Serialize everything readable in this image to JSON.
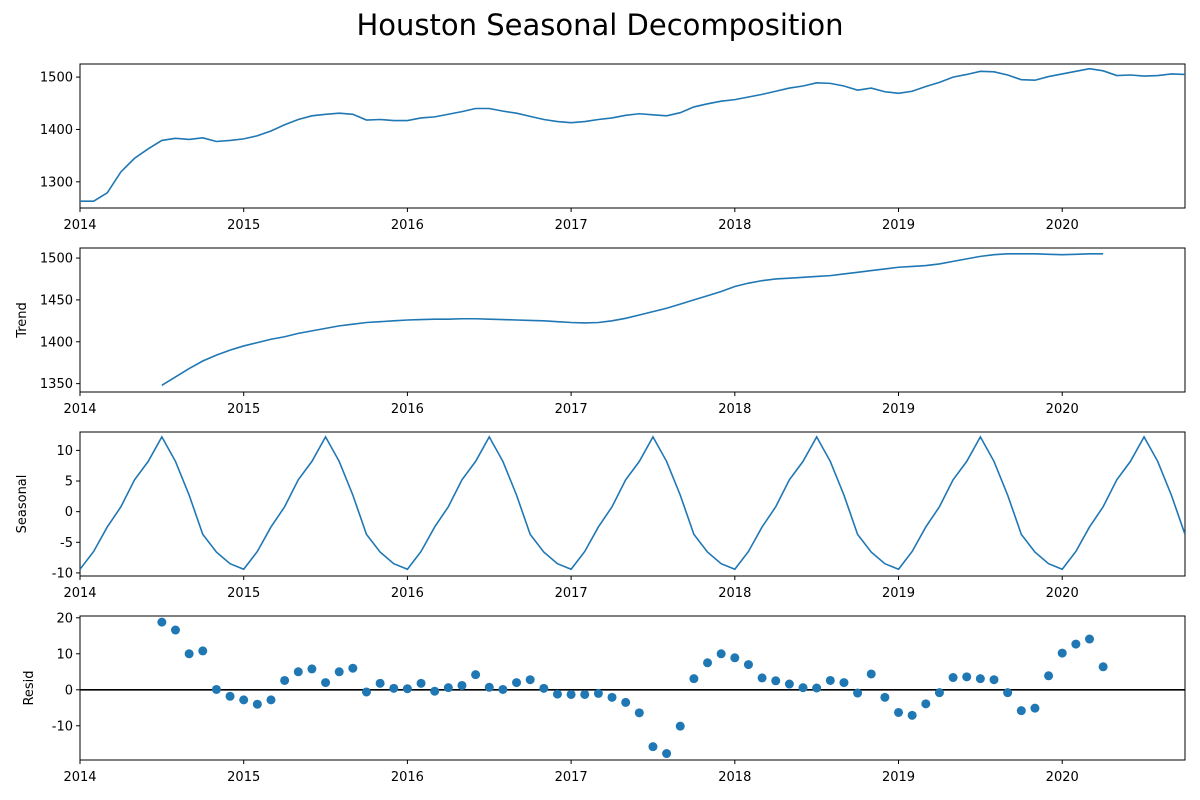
{
  "chart_data": {
    "type": "line",
    "title": "Houston Seasonal Decomposition",
    "x_ticks": [
      "2014",
      "2015",
      "2016",
      "2017",
      "2018",
      "2019",
      "2020"
    ],
    "x_range": [
      "2014-01",
      "2020-10"
    ],
    "series_color": "#1f77b4",
    "panels": [
      {
        "name": "observed",
        "ylabel": "",
        "kind": "line",
        "ylim": [
          1250,
          1525
        ],
        "yticks": [
          1300,
          1400,
          1500
        ],
        "x": [
          "2014-01",
          "2014-02",
          "2014-03",
          "2014-04",
          "2014-05",
          "2014-06",
          "2014-07",
          "2014-08",
          "2014-09",
          "2014-10",
          "2014-11",
          "2014-12",
          "2015-01",
          "2015-02",
          "2015-03",
          "2015-04",
          "2015-05",
          "2015-06",
          "2015-07",
          "2015-08",
          "2015-09",
          "2015-10",
          "2015-11",
          "2015-12",
          "2016-01",
          "2016-02",
          "2016-03",
          "2016-04",
          "2016-05",
          "2016-06",
          "2016-07",
          "2016-08",
          "2016-09",
          "2016-10",
          "2016-11",
          "2016-12",
          "2017-01",
          "2017-02",
          "2017-03",
          "2017-04",
          "2017-05",
          "2017-06",
          "2017-07",
          "2017-08",
          "2017-09",
          "2017-10",
          "2017-11",
          "2017-12",
          "2018-01",
          "2018-02",
          "2018-03",
          "2018-04",
          "2018-05",
          "2018-06",
          "2018-07",
          "2018-08",
          "2018-09",
          "2018-10",
          "2018-11",
          "2018-12",
          "2019-01",
          "2019-02",
          "2019-03",
          "2019-04",
          "2019-05",
          "2019-06",
          "2019-07",
          "2019-08",
          "2019-09",
          "2019-10",
          "2019-11",
          "2019-12",
          "2020-01",
          "2020-02",
          "2020-03",
          "2020-04",
          "2020-05",
          "2020-06",
          "2020-07",
          "2020-08",
          "2020-09",
          "2020-10"
        ],
        "values": [
          1263,
          1263,
          1279,
          1319,
          1345,
          1363,
          1379,
          1383,
          1381,
          1384,
          1377,
          1379,
          1382,
          1388,
          1397,
          1409,
          1419,
          1426,
          1429,
          1431,
          1429,
          1418,
          1419,
          1417,
          1417,
          1422,
          1424,
          1429,
          1434,
          1440,
          1440,
          1435,
          1431,
          1425,
          1419,
          1415,
          1413,
          1415,
          1419,
          1422,
          1427,
          1430,
          1428,
          1426,
          1432,
          1443,
          1449,
          1454,
          1457,
          1462,
          1467,
          1473,
          1479,
          1483,
          1489,
          1488,
          1483,
          1475,
          1479,
          1472,
          1469,
          1473,
          1482,
          1490,
          1500,
          1505,
          1511,
          1510,
          1504,
          1495,
          1494,
          1501,
          1506,
          1511,
          1516,
          1512,
          1503,
          1504,
          1502,
          1503,
          1506,
          1505
        ]
      },
      {
        "name": "trend",
        "ylabel": "Trend",
        "kind": "line",
        "ylim": [
          1340,
          1512
        ],
        "yticks": [
          1350,
          1400,
          1450,
          1500
        ],
        "x": [
          "2014-07",
          "2014-08",
          "2014-09",
          "2014-10",
          "2014-11",
          "2014-12",
          "2015-01",
          "2015-02",
          "2015-03",
          "2015-04",
          "2015-05",
          "2015-06",
          "2015-07",
          "2015-08",
          "2015-09",
          "2015-10",
          "2015-11",
          "2015-12",
          "2016-01",
          "2016-02",
          "2016-03",
          "2016-04",
          "2016-05",
          "2016-06",
          "2016-07",
          "2016-08",
          "2016-09",
          "2016-10",
          "2016-11",
          "2016-12",
          "2017-01",
          "2017-02",
          "2017-03",
          "2017-04",
          "2017-05",
          "2017-06",
          "2017-07",
          "2017-08",
          "2017-09",
          "2017-10",
          "2017-11",
          "2017-12",
          "2018-01",
          "2018-02",
          "2018-03",
          "2018-04",
          "2018-05",
          "2018-06",
          "2018-07",
          "2018-08",
          "2018-09",
          "2018-10",
          "2018-11",
          "2018-12",
          "2019-01",
          "2019-02",
          "2019-03",
          "2019-04",
          "2019-05",
          "2019-06",
          "2019-07",
          "2019-08",
          "2019-09",
          "2019-10",
          "2019-11",
          "2019-12",
          "2020-01",
          "2020-02",
          "2020-03",
          "2020-04"
        ],
        "values": [
          1348,
          1358,
          1368,
          1377,
          1384,
          1390,
          1395,
          1399,
          1403,
          1406,
          1410,
          1413,
          1416,
          1419,
          1421,
          1423,
          1424,
          1425,
          1426,
          1426.5,
          1427,
          1427,
          1427.5,
          1427.5,
          1427,
          1426.5,
          1426,
          1425.5,
          1425,
          1424,
          1423,
          1422.5,
          1423,
          1425,
          1428,
          1432,
          1436,
          1440,
          1445,
          1450,
          1455,
          1460,
          1466,
          1470,
          1473,
          1475,
          1476,
          1477,
          1478,
          1479,
          1481,
          1483,
          1485,
          1487,
          1489,
          1490,
          1491,
          1493,
          1496,
          1499,
          1502,
          1504,
          1505,
          1505,
          1505,
          1504.5,
          1504,
          1504.5,
          1505,
          1505
        ]
      },
      {
        "name": "seasonal",
        "ylabel": "Seasonal",
        "kind": "line",
        "ylim": [
          -10.5,
          13
        ],
        "yticks": [
          -10,
          -5,
          0,
          5,
          10
        ],
        "monthly_pattern": [
          -9.4,
          -6.5,
          -2.5,
          0.8,
          5.2,
          8.2,
          12.2,
          8.2,
          2.7,
          -3.7,
          -6.6,
          -8.5
        ],
        "x_start": "2014-01",
        "x_end": "2020-10"
      },
      {
        "name": "resid",
        "ylabel": "Resid",
        "kind": "scatter",
        "ylim": [
          -19.5,
          20.5
        ],
        "yticks": [
          -10,
          0,
          10,
          20
        ],
        "baseline": 0,
        "x": [
          "2014-07",
          "2014-08",
          "2014-09",
          "2014-10",
          "2014-11",
          "2014-12",
          "2015-01",
          "2015-02",
          "2015-03",
          "2015-04",
          "2015-05",
          "2015-06",
          "2015-07",
          "2015-08",
          "2015-09",
          "2015-10",
          "2015-11",
          "2015-12",
          "2016-01",
          "2016-02",
          "2016-03",
          "2016-04",
          "2016-05",
          "2016-06",
          "2016-07",
          "2016-08",
          "2016-09",
          "2016-10",
          "2016-11",
          "2016-12",
          "2017-01",
          "2017-02",
          "2017-03",
          "2017-04",
          "2017-05",
          "2017-06",
          "2017-07",
          "2017-08",
          "2017-09",
          "2017-10",
          "2017-11",
          "2017-12",
          "2018-01",
          "2018-02",
          "2018-03",
          "2018-04",
          "2018-05",
          "2018-06",
          "2018-07",
          "2018-08",
          "2018-09",
          "2018-10",
          "2018-11",
          "2018-12",
          "2019-01",
          "2019-02",
          "2019-03",
          "2019-04",
          "2019-05",
          "2019-06",
          "2019-07",
          "2019-08",
          "2019-09",
          "2019-10",
          "2019-11",
          "2019-12",
          "2020-01",
          "2020-02",
          "2020-03",
          "2020-04"
        ],
        "values": [
          18.8,
          16.6,
          10.0,
          10.8,
          0.1,
          -1.8,
          -2.8,
          -4.0,
          -2.8,
          2.6,
          5.0,
          5.8,
          2.0,
          5.0,
          6.0,
          -0.6,
          1.8,
          0.4,
          0.3,
          1.8,
          -0.4,
          0.6,
          1.2,
          4.2,
          0.7,
          0.1,
          2.0,
          2.8,
          0.4,
          -1.2,
          -1.3,
          -1.3,
          -1.0,
          -2.1,
          -3.5,
          -6.4,
          -15.8,
          -17.7,
          -10.1,
          3.1,
          7.5,
          10.0,
          8.9,
          7.0,
          3.3,
          2.5,
          1.6,
          0.6,
          0.5,
          2.6,
          2.0,
          -0.9,
          4.4,
          -2.1,
          -6.3,
          -7.1,
          -3.9,
          -0.8,
          3.4,
          3.6,
          3.1,
          2.8,
          -0.8,
          -5.8,
          -5.1,
          3.9,
          10.2,
          12.7,
          14.1,
          6.4
        ]
      }
    ]
  }
}
